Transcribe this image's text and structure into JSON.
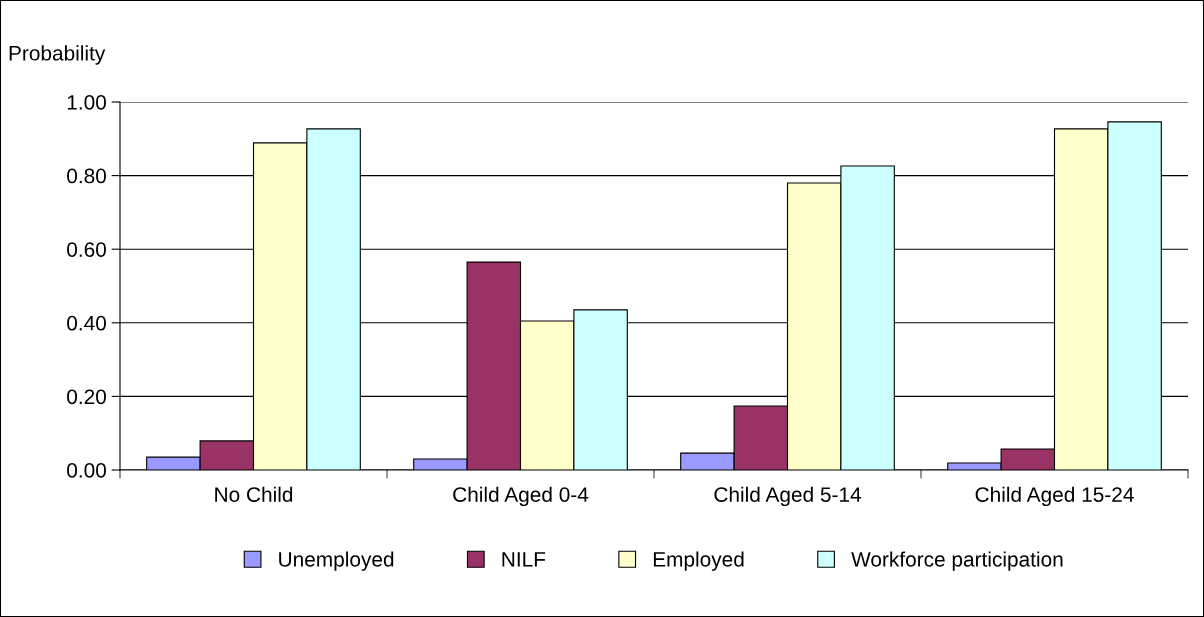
{
  "chart_data": {
    "type": "bar",
    "ylabel": "Probability",
    "categories": [
      "No Child",
      "Child Aged 0-4",
      "Child Aged 5-14",
      "Child Aged 15-24"
    ],
    "series": [
      {
        "name": "Unemployed",
        "color": "#9999ff",
        "values": [
          0.035,
          0.03,
          0.046,
          0.019
        ]
      },
      {
        "name": "NILF",
        "color": "#993366",
        "values": [
          0.079,
          0.565,
          0.174,
          0.057
        ]
      },
      {
        "name": "Employed",
        "color": "#ffffcc",
        "values": [
          0.889,
          0.405,
          0.78,
          0.927
        ]
      },
      {
        "name": "Workforce participation",
        "color": "#ccffff",
        "values": [
          0.927,
          0.435,
          0.826,
          0.946
        ]
      }
    ],
    "ylim": [
      0,
      1.0
    ],
    "yticks": [
      {
        "value": 0,
        "label": "0.00"
      },
      {
        "value": 0.2,
        "label": "0.20"
      },
      {
        "value": 0.4,
        "label": "0.40"
      },
      {
        "value": 0.6,
        "label": "0.60"
      },
      {
        "value": 0.8,
        "label": "0.80"
      },
      {
        "value": 1.0,
        "label": "1.00"
      }
    ],
    "grid": "y",
    "legend": "bottom"
  }
}
